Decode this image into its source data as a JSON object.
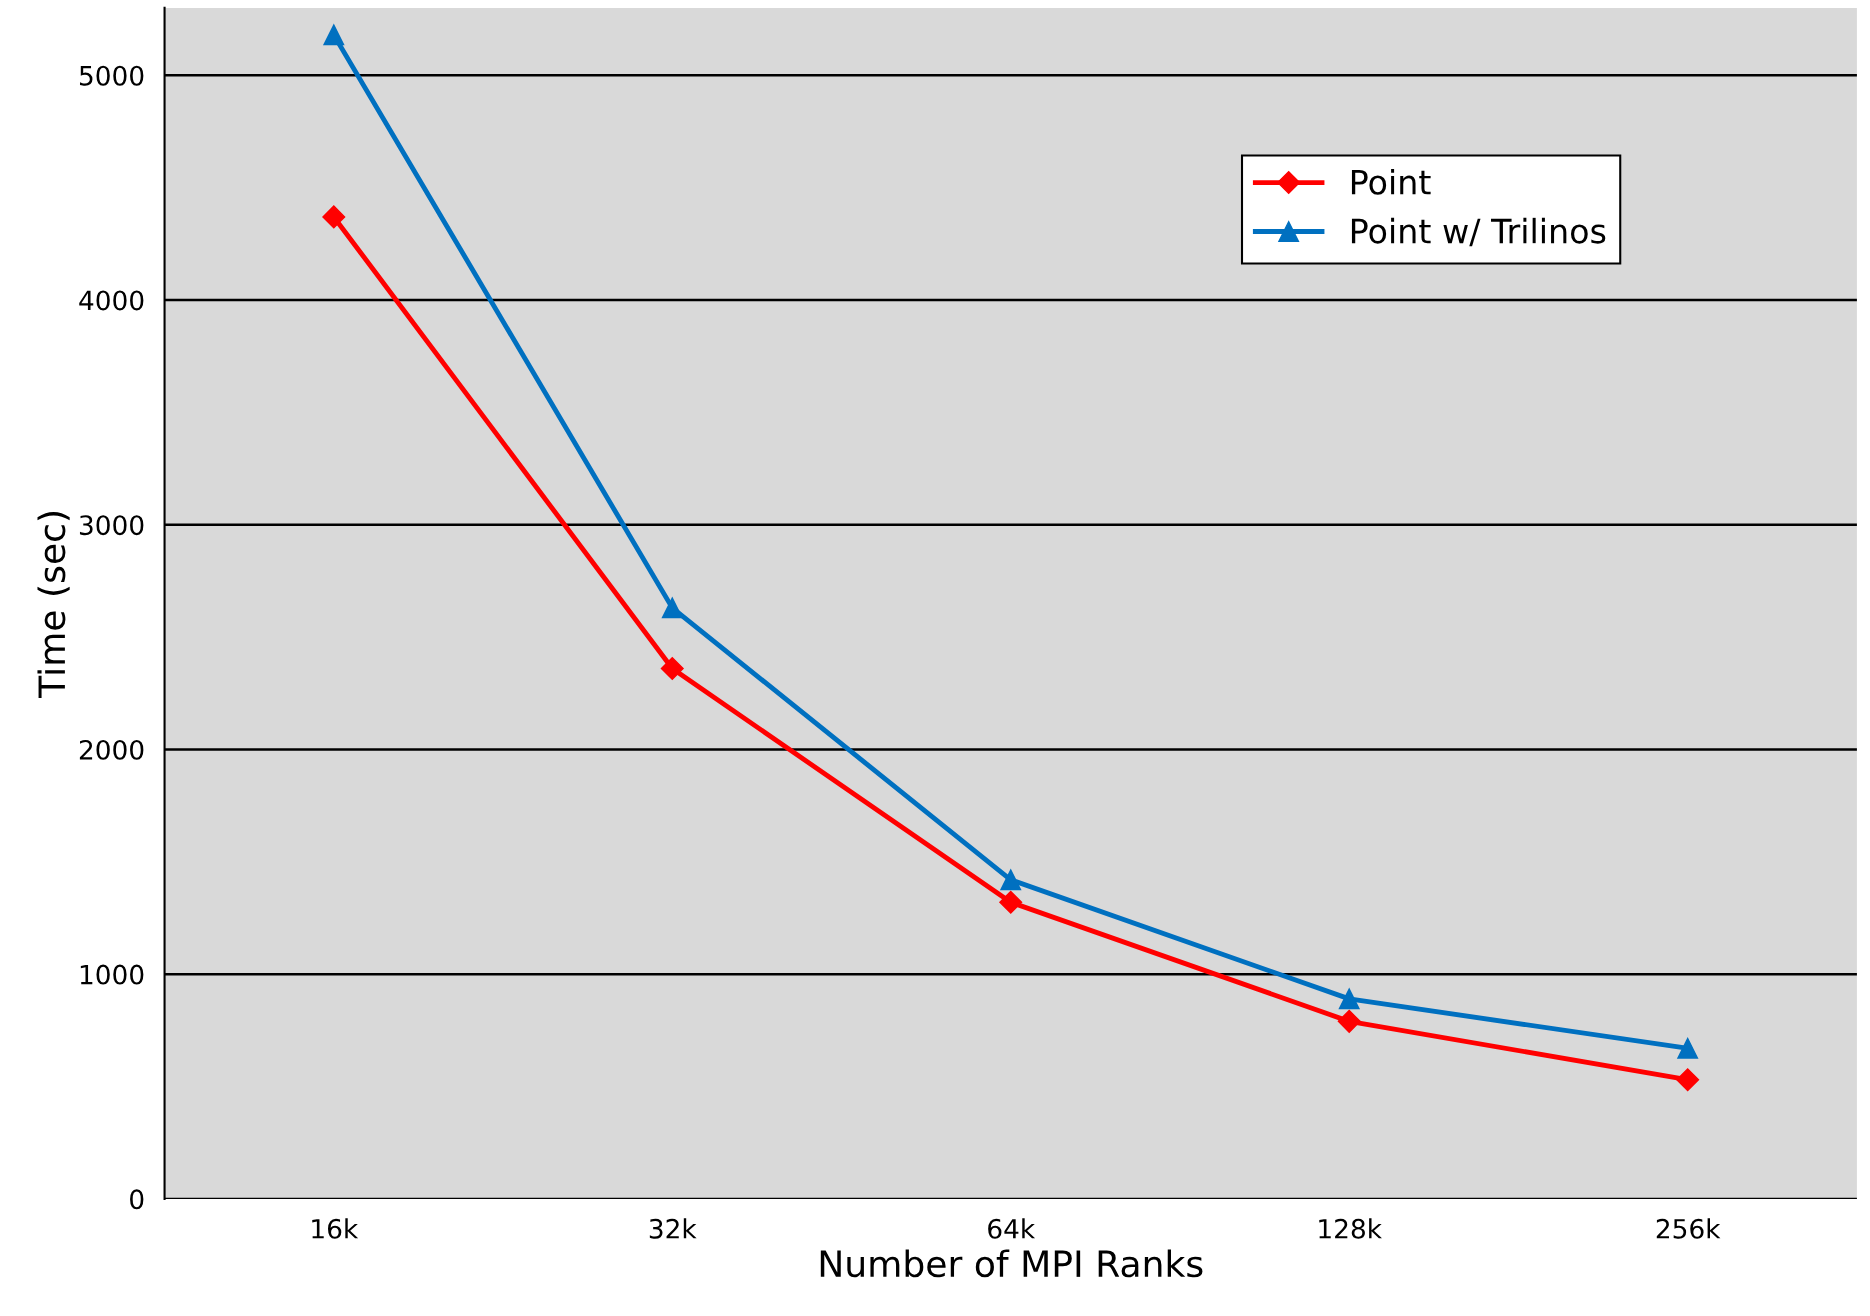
{
  "chart_data": {
    "type": "line",
    "xlabel": "Number of MPI Ranks",
    "ylabel": "Time (sec)",
    "categories": [
      "16k",
      "32k",
      "64k",
      "128k",
      "256k"
    ],
    "series": [
      {
        "name": "Point",
        "color": "#ff0000",
        "marker": "diamond",
        "values": [
          4370,
          2360,
          1320,
          790,
          530
        ]
      },
      {
        "name": "Point w/ Trilinos",
        "color": "#0070c0",
        "marker": "triangle",
        "values": [
          5180,
          2630,
          1420,
          890,
          670
        ]
      }
    ],
    "ylim": [
      0,
      5300
    ],
    "yticks": [
      0,
      1000,
      2000,
      3000,
      4000,
      5000
    ],
    "grid": "y",
    "legend": "top right",
    "line_style": "solid"
  }
}
